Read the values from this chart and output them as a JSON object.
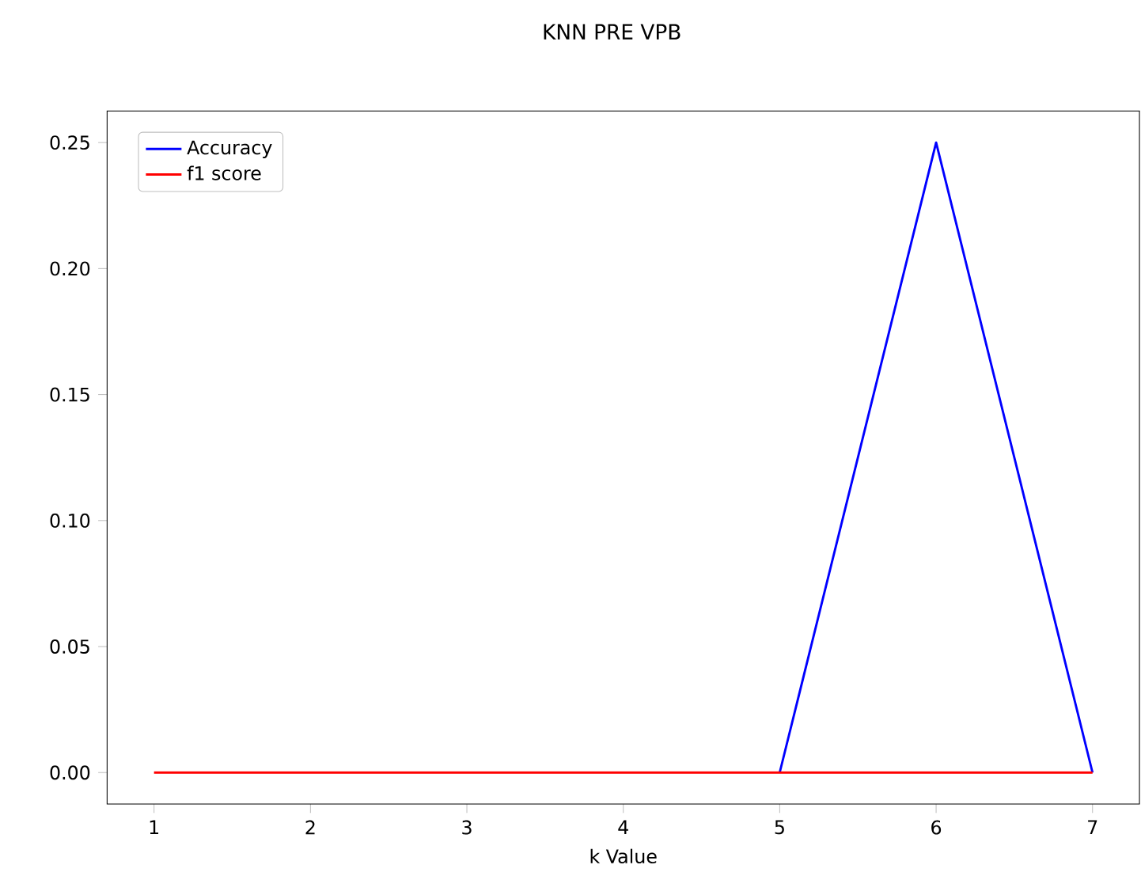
{
  "chart_data": {
    "type": "line",
    "title": "KNN PRE VPB",
    "xlabel": "k Value",
    "x": [
      1,
      2,
      3,
      4,
      5,
      6,
      7
    ],
    "series": [
      {
        "name": "Accuracy",
        "color": "#0000ff",
        "values": [
          null,
          null,
          null,
          null,
          0,
          0.25,
          0
        ]
      },
      {
        "name": "f1 score",
        "color": "#ff0000",
        "values": [
          0,
          0,
          0,
          0,
          0,
          0,
          0
        ]
      }
    ],
    "xlim": [
      0.7,
      7.3
    ],
    "ylim": [
      -0.0125,
      0.2625
    ],
    "xticks": [
      1,
      2,
      3,
      4,
      5,
      6,
      7
    ],
    "yticks": [
      {
        "value": 0,
        "label": "0.00"
      },
      {
        "value": 0.05,
        "label": "0.05"
      },
      {
        "value": 0.1,
        "label": "0.10"
      },
      {
        "value": 0.15,
        "label": "0.15"
      },
      {
        "value": 0.2,
        "label": "0.20"
      },
      {
        "value": 0.25,
        "label": "0.25"
      }
    ],
    "legend": "top left",
    "grid": false,
    "marker": "none",
    "line_style": "solid"
  }
}
